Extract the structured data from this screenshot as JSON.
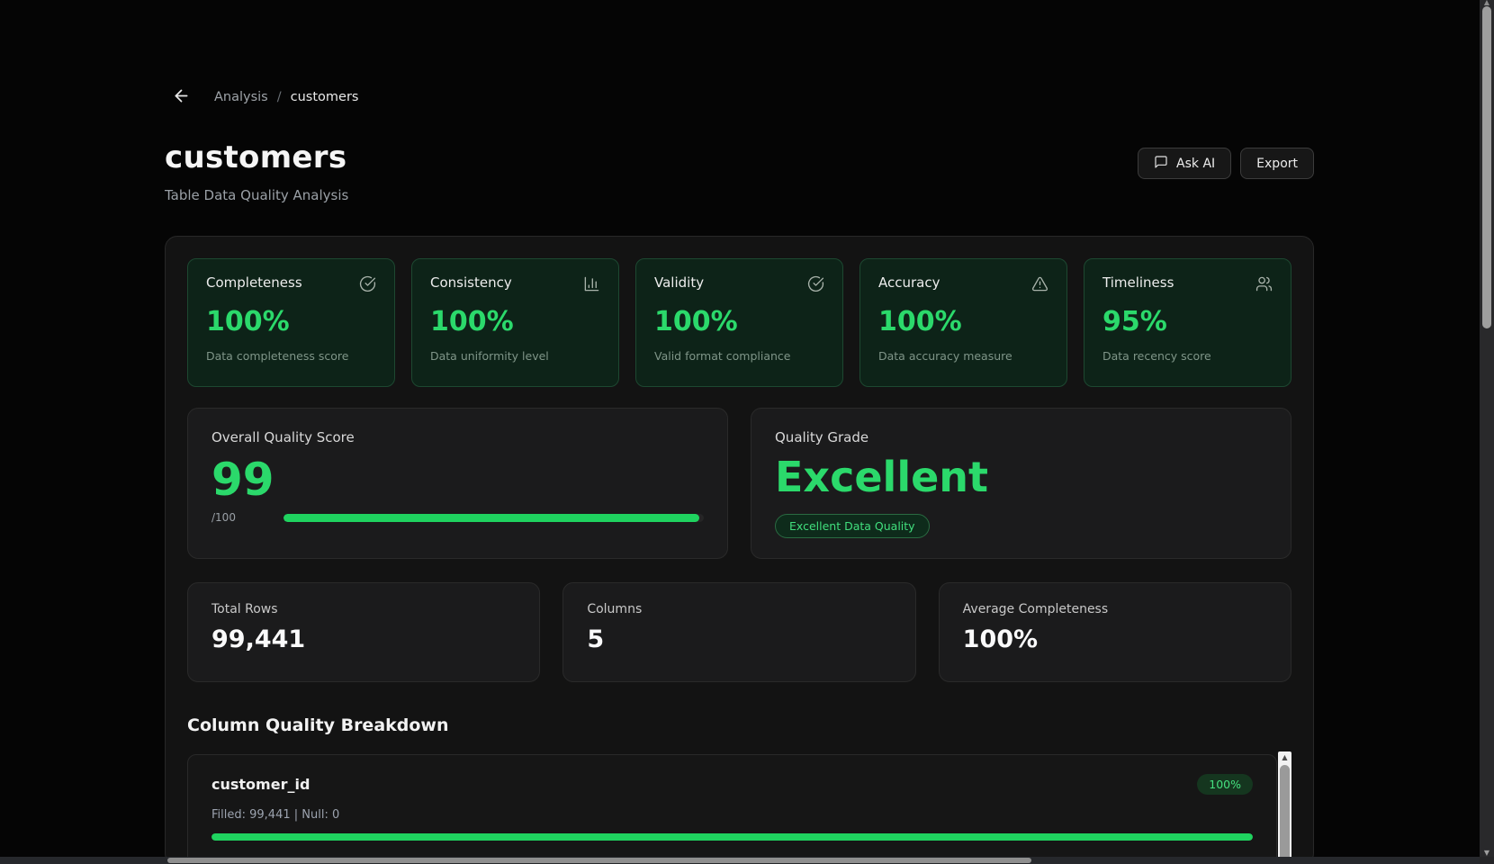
{
  "breadcrumb": {
    "items": [
      "Analysis",
      "customers"
    ],
    "separator": "/"
  },
  "header": {
    "title": "customers",
    "subtitle": "Table Data Quality Analysis",
    "actions": [
      {
        "label": "Ask AI",
        "icon": "message-square-icon"
      },
      {
        "label": "Export"
      }
    ]
  },
  "metrics": [
    {
      "label": "Completeness",
      "value": "100%",
      "description": "Data completeness score",
      "icon": "check-circle-icon"
    },
    {
      "label": "Consistency",
      "value": "100%",
      "description": "Data uniformity level",
      "icon": "bar-chart-icon"
    },
    {
      "label": "Validity",
      "value": "100%",
      "description": "Valid format compliance",
      "icon": "check-circle-icon"
    },
    {
      "label": "Accuracy",
      "value": "100%",
      "description": "Data accuracy measure",
      "icon": "alert-triangle-icon"
    },
    {
      "label": "Timeliness",
      "value": "95%",
      "description": "Data recency score",
      "icon": "users-icon"
    }
  ],
  "overall_score": {
    "label": "Overall Quality Score",
    "value": "99",
    "max_label": "/100",
    "percent": 99
  },
  "quality_grade": {
    "label": "Quality Grade",
    "value": "Excellent",
    "badge": "Excellent Data Quality"
  },
  "stats": [
    {
      "label": "Total Rows",
      "value": "99,441"
    },
    {
      "label": "Columns",
      "value": "5"
    },
    {
      "label": "Average Completeness",
      "value": "100%"
    }
  ],
  "columns_section": {
    "heading": "Column Quality Breakdown",
    "columns": [
      {
        "name": "customer_id",
        "badge": "100%",
        "details": "Filled: 99,441 | Null: 0",
        "percent": 100
      }
    ]
  },
  "colors": {
    "accent_green": "#2bd96b",
    "bar_green": "#1fd35f",
    "card_green_bg": "#0d2318"
  }
}
